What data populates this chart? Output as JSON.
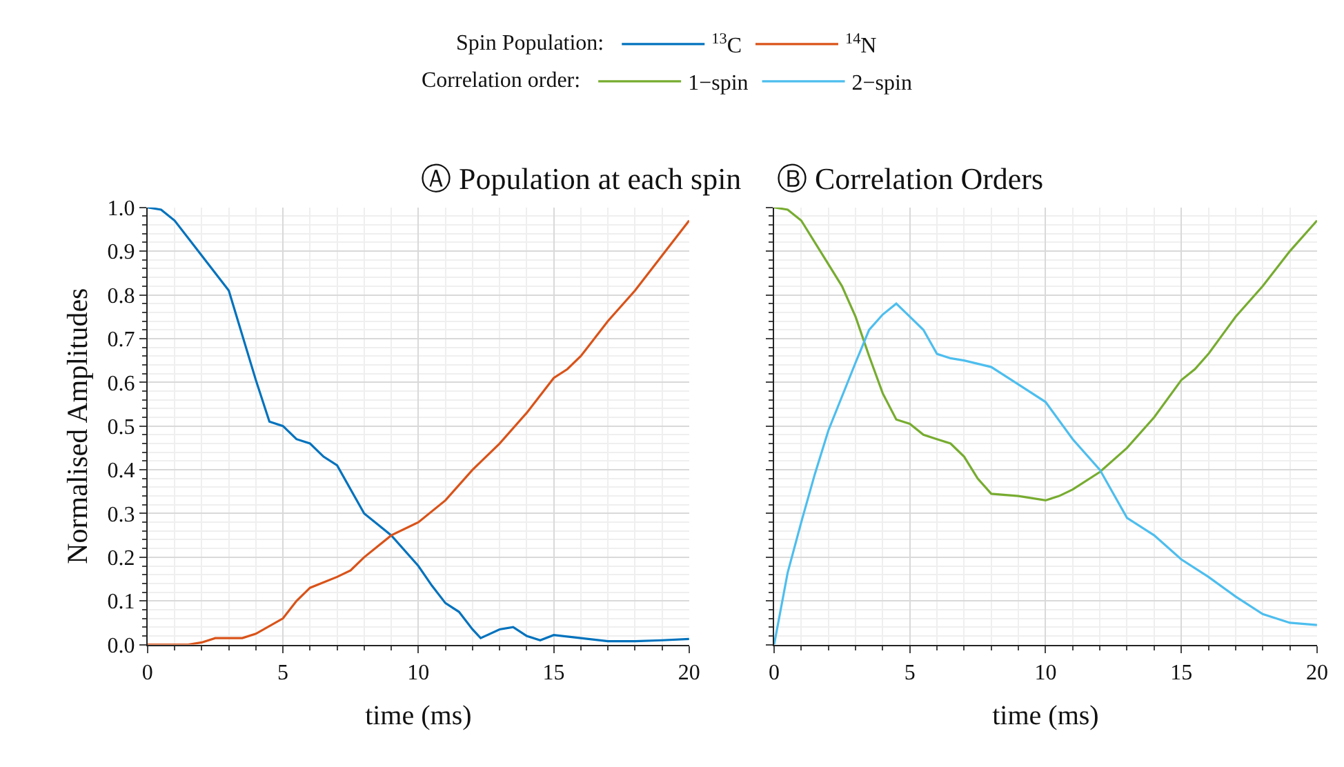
{
  "chart_data": [
    {
      "type": "line",
      "title": "Ⓐ Population at each spin",
      "xlabel": "time (ms)",
      "ylabel": "Normalised Amplitudes",
      "legend_title": "Spin Population:",
      "legend": "top",
      "grid": true,
      "marker": "none",
      "line_style": "solid",
      "xlim": [
        0,
        20
      ],
      "xticks": [
        0,
        5,
        10,
        15,
        20
      ],
      "ylim": [
        0,
        1
      ],
      "yticks": [
        {
          "value": 0,
          "label": "0.0"
        },
        0.1,
        0.2,
        0.3,
        0.4,
        0.5,
        0.6,
        0.7,
        0.8,
        0.9,
        {
          "value": 1,
          "label": "1.0"
        }
      ],
      "series": [
        {
          "name": "$^{13}$C",
          "color": "#0072bd",
          "x": [
            0,
            0.5,
            1,
            2,
            3,
            4,
            4.5,
            5,
            5.5,
            6,
            6.5,
            7,
            8,
            9,
            10,
            10.5,
            11,
            11.5,
            12,
            12.3,
            13,
            13.5,
            14,
            14.5,
            15,
            16,
            17,
            18,
            19,
            20
          ],
          "values": [
            1.0,
            0.995,
            0.97,
            0.89,
            0.81,
            0.605,
            0.51,
            0.5,
            0.47,
            0.46,
            0.43,
            0.41,
            0.3,
            0.25,
            0.18,
            0.135,
            0.095,
            0.075,
            0.035,
            0.015,
            0.035,
            0.04,
            0.02,
            0.01,
            0.022,
            0.015,
            0.008,
            0.008,
            0.01,
            0.013
          ]
        },
        {
          "name": "$^{14}$N",
          "color": "#d95319",
          "x": [
            0,
            1,
            1.5,
            2,
            2.5,
            3,
            3.5,
            4,
            5,
            5.5,
            6,
            7,
            7.5,
            8,
            9,
            10,
            11,
            12,
            13,
            14,
            15,
            15.5,
            16,
            17,
            18,
            19,
            20
          ],
          "values": [
            0,
            0,
            0,
            0.005,
            0.015,
            0.015,
            0.015,
            0.025,
            0.06,
            0.1,
            0.13,
            0.155,
            0.17,
            0.2,
            0.25,
            0.28,
            0.33,
            0.4,
            0.46,
            0.53,
            0.61,
            0.63,
            0.66,
            0.74,
            0.81,
            0.89,
            0.97
          ]
        }
      ]
    },
    {
      "type": "line",
      "title": "Ⓑ Correlation Orders",
      "xlabel": "time (ms)",
      "legend_title": "Correlation order:",
      "legend": "top",
      "grid": true,
      "marker": "none",
      "line_style": "solid",
      "tick_labels": "x",
      "xlim": [
        0,
        20
      ],
      "xticks": [
        0,
        5,
        10,
        15,
        20
      ],
      "ylim": [
        0,
        1
      ],
      "yticks": [
        0,
        0.1,
        0.2,
        0.3,
        0.4,
        0.5,
        0.6,
        0.7,
        0.8,
        0.9,
        1
      ],
      "series": [
        {
          "name": "1−spin",
          "color": "#77ac30",
          "x": [
            0,
            0.5,
            1,
            2,
            2.5,
            3,
            3.5,
            4,
            4.5,
            5,
            5.5,
            6,
            6.5,
            7,
            7.5,
            8,
            9,
            10,
            10.5,
            11,
            12,
            13,
            14,
            15,
            15.5,
            16,
            17,
            18,
            19,
            20
          ],
          "values": [
            1.0,
            0.995,
            0.97,
            0.87,
            0.82,
            0.75,
            0.66,
            0.575,
            0.515,
            0.505,
            0.48,
            0.47,
            0.46,
            0.43,
            0.38,
            0.345,
            0.34,
            0.33,
            0.34,
            0.355,
            0.395,
            0.45,
            0.52,
            0.605,
            0.63,
            0.665,
            0.75,
            0.82,
            0.9,
            0.97
          ]
        },
        {
          "name": "2−spin",
          "color": "#4dbeee",
          "x": [
            0,
            0.5,
            1,
            1.5,
            2,
            3,
            3.5,
            4,
            4.5,
            5,
            5.5,
            6,
            6.5,
            7,
            8,
            9,
            10,
            11,
            12,
            13,
            14,
            15,
            16,
            17,
            18,
            19,
            20
          ],
          "values": [
            0,
            0.165,
            0.28,
            0.39,
            0.49,
            0.645,
            0.72,
            0.755,
            0.78,
            0.75,
            0.72,
            0.665,
            0.655,
            0.65,
            0.635,
            0.595,
            0.555,
            0.47,
            0.4,
            0.29,
            0.25,
            0.195,
            0.155,
            0.11,
            0.07,
            0.05,
            0.045
          ]
        }
      ]
    }
  ]
}
